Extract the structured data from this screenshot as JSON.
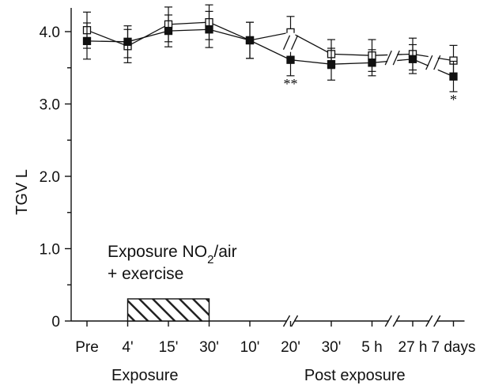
{
  "chart_data": {
    "type": "line",
    "ylabel": "TGV  L",
    "ylim": [
      0,
      4.35
    ],
    "y_ticks": [
      "0",
      "1.0",
      "2.0",
      "3.0",
      "4.0"
    ],
    "categories": [
      "Pre",
      "4'",
      "15'",
      "30'",
      "10'",
      "20'",
      "30'",
      "5 h",
      "27 h",
      "7 days"
    ],
    "groups": [
      "Exposure",
      "Post exposure"
    ],
    "series": [
      {
        "marker": "open-square",
        "values": [
          4.02,
          3.8,
          4.1,
          4.13,
          3.88,
          3.99,
          3.69,
          3.67,
          3.69,
          3.6
        ],
        "errors": [
          0.25,
          0.23,
          0.24,
          0.24,
          0.25,
          0.22,
          0.2,
          0.22,
          0.22,
          0.21
        ]
      },
      {
        "marker": "filled-square",
        "values": [
          3.87,
          3.86,
          4.01,
          4.03,
          3.88,
          3.61,
          3.55,
          3.57,
          3.62,
          3.38
        ],
        "errors": [
          0.25,
          0.22,
          0.22,
          0.25,
          0.25,
          0.22,
          0.22,
          0.18,
          0.2,
          0.21
        ]
      }
    ],
    "significance": [
      {
        "category": "20'",
        "label": "**"
      },
      {
        "category": "7 days",
        "label": "*"
      }
    ],
    "annotation": {
      "lines": [
        "Exposure NO",
        "2",
        "/air",
        "+ exercise"
      ],
      "bar_from": "4'",
      "bar_to": "30'"
    },
    "axis_breaks_between": [
      [
        "30'",
        "5 h"
      ],
      [
        "5 h",
        "27 h"
      ],
      [
        "27 h",
        "7 days"
      ]
    ],
    "grid": false,
    "legend": "none"
  }
}
